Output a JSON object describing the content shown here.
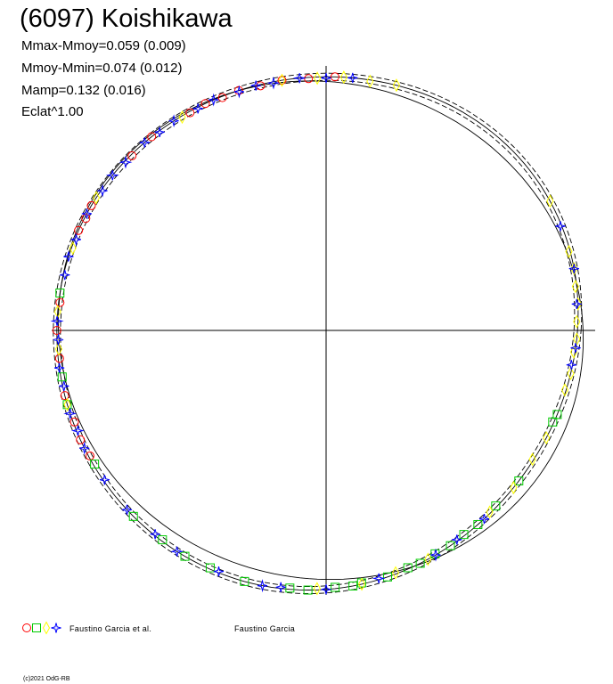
{
  "header": {
    "title": "(6097) Koishikawa",
    "stats": [
      "Mmax-Mmoy=0.059 (0.009)",
      "Mmoy-Mmin=0.074 (0.012)",
      "Mamp=0.132 (0.016)",
      "Eclat^1.00"
    ]
  },
  "legend": {
    "items": [
      {
        "label": "Faustino Garcia et al.",
        "markers": [
          "circle",
          "square",
          "diamond",
          "star"
        ],
        "colors": [
          "#ff0000",
          "#00cc00",
          "#ffff00",
          "#0000ff"
        ]
      },
      {
        "label": "Faustino Garcia",
        "markers": [],
        "colors": []
      }
    ]
  },
  "footer": {
    "copyright": "(c)2021 OdG-RB"
  },
  "chart_data": {
    "type": "scatter",
    "projection": "polar",
    "title": "(6097) Koishikawa",
    "grid": false,
    "series": [
      {
        "marker": "circle",
        "color": "#ff0000",
        "angles": [
          88,
          94,
          100,
          105,
          110,
          114,
          118,
          122,
          132,
          138,
          152,
          155,
          158,
          174,
          180,
          186,
          194,
          200,
          204,
          208
        ],
        "radii": [
          1.0,
          0.995,
          1.0,
          0.995,
          1.0,
          0.995,
          1.0,
          0.995,
          1.0,
          0.995,
          1.0,
          0.995,
          1.0,
          0.995,
          1.0,
          0.995,
          1.0,
          0.995,
          1.0,
          0.995
        ]
      },
      {
        "marker": "square",
        "color": "#00cc00",
        "angles": [
          172,
          190,
          196,
          210,
          224,
          232,
          238,
          244,
          252,
          262,
          266,
          272,
          276,
          278,
          284,
          289,
          292,
          296,
          300,
          304,
          308,
          314,
          322,
          338,
          340
        ],
        "radii": [
          1.0,
          0.995,
          1.0,
          0.995,
          1.0,
          0.995,
          1.0,
          0.995,
          1.0,
          0.995,
          1.0,
          0.995,
          1.0,
          0.995,
          1.0,
          0.995,
          1.0,
          0.995,
          1.0,
          0.995,
          1.0,
          0.995,
          1.0,
          0.995,
          1.0
        ]
      },
      {
        "marker": "diamond",
        "color": "#ffff00",
        "angles": [
          74,
          80,
          86,
          92,
          100,
          124,
          150,
          162,
          176,
          184,
          196,
          268,
          278,
          286,
          294,
          312,
          320,
          328,
          334,
          346,
          350,
          355,
          358,
          2,
          6,
          10,
          14,
          18,
          30
        ],
        "radii": [
          1.0,
          0.995,
          1.0,
          0.995,
          1.0,
          0.995,
          1.0,
          0.995,
          1.0,
          0.995,
          1.0,
          0.995,
          1.0,
          0.995,
          1.0,
          0.995,
          1.0,
          0.995,
          1.0,
          0.995,
          1.0,
          0.995,
          1.0,
          0.995,
          1.0,
          0.995,
          1.0,
          0.995,
          1.0
        ]
      },
      {
        "marker": "star",
        "color": "#0000ff",
        "angles": [
          84,
          90,
          96,
          102,
          106,
          110,
          116,
          120,
          126,
          130,
          134,
          140,
          144,
          148,
          154,
          160,
          164,
          168,
          178,
          182,
          188,
          192,
          198,
          202,
          206,
          214,
          222,
          230,
          236,
          246,
          256,
          260,
          270,
          282,
          296,
          302,
          310,
          352,
          356,
          6,
          14,
          24
        ],
        "radii": [
          1.0,
          0.995,
          1.0,
          0.995,
          1.0,
          0.995,
          1.0,
          0.995,
          1.0,
          0.995,
          1.0,
          0.995,
          1.0,
          0.995,
          1.0,
          0.995,
          1.0,
          0.995,
          1.0,
          0.995,
          1.0,
          0.995,
          1.0,
          0.995,
          1.0,
          0.995,
          1.0,
          0.995,
          1.0,
          0.995,
          1.0,
          0.995,
          1.0,
          0.995,
          1.0,
          0.995,
          1.0,
          0.995,
          1.0,
          0.995,
          1.0,
          0.995
        ]
      }
    ],
    "curves": [
      {
        "style": "solid",
        "shape": "fit"
      },
      {
        "style": "dashed",
        "shape": "fit-upper"
      },
      {
        "style": "dashed",
        "shape": "fit-lower"
      },
      {
        "style": "solid",
        "shape": "reference"
      }
    ]
  }
}
